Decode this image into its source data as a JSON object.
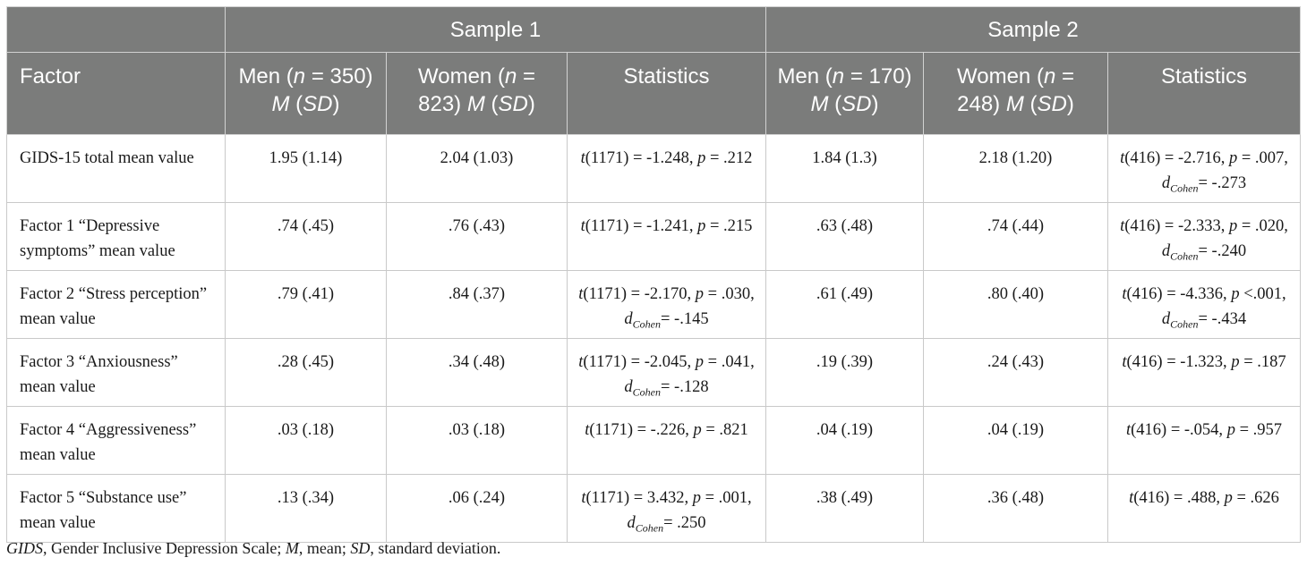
{
  "table": {
    "group_headers": [
      "",
      "Sample 1",
      "Sample 2"
    ],
    "header": {
      "factor": "Factor",
      "men1_a": "Men (",
      "men1_b": "n",
      "men1_c": " = 350) ",
      "women1_a": "Women (",
      "women1_b": "n",
      "women1_c": " = 823) ",
      "men2_a": "Men (",
      "men2_b": "n",
      "men2_c": " = 170) ",
      "women2_a": "Women (",
      "women2_b": "n",
      "women2_c": " = 248) ",
      "M": "M",
      "SD": "SD",
      "lp": " (",
      "rp": ")",
      "statistics": "Statistics"
    },
    "rows": [
      {
        "factor": "GIDS-15 total mean value",
        "men1": "1.95 (1.14)",
        "women1": "2.04 (1.03)",
        "stat1_a": "(1171) = -1.248, ",
        "stat1_b": " = .212",
        "men2": "1.84 (1.3)",
        "women2": "2.18 (1.20)",
        "stat2_a": "(416) = -2.716, ",
        "stat2_b": " = .007, ",
        "stat2_d": "= -.273"
      },
      {
        "factor": "Factor 1 “Depressive symptoms” mean value",
        "men1": ".74 (.45)",
        "women1": ".76 (.43)",
        "stat1_a": "(1171) = -1.241, ",
        "stat1_b": " = .215",
        "men2": ".63 (.48)",
        "women2": ".74 (.44)",
        "stat2_a": "(416) = -2.333, ",
        "stat2_b": " = .020, ",
        "stat2_d": "= -.240"
      },
      {
        "factor": "Factor 2 “Stress perception” mean value",
        "men1": ".79 (.41)",
        "women1": ".84 (.37)",
        "stat1_a": "(1171) = -2.170, ",
        "stat1_b": " = .030, ",
        "stat1_d": "= -.145",
        "men2": ".61 (.49)",
        "women2": ".80 (.40)",
        "stat2_a": "(416) = -4.336, ",
        "stat2_b": " <.001, ",
        "stat2_d": "= -.434"
      },
      {
        "factor": "Factor 3 “Anxiousness” mean value",
        "men1": ".28 (.45)",
        "women1": ".34 (.48)",
        "stat1_a": "(1171) = -2.045, ",
        "stat1_b": " = .041, ",
        "stat1_d": "= -.128",
        "men2": ".19 (.39)",
        "women2": ".24 (.43)",
        "stat2_a": "(416) = -1.323, ",
        "stat2_b": " = .187"
      },
      {
        "factor": "Factor 4 “Aggressiveness” mean value",
        "men1": ".03 (.18)",
        "women1": ".03 (.18)",
        "stat1_a": "(1171) = -.226, ",
        "stat1_b": " = .821",
        "men2": ".04 (.19)",
        "women2": ".04 (.19)",
        "stat2_a": "(416) = -.054, ",
        "stat2_b": " = .957"
      },
      {
        "factor": "Factor 5 “Substance use” mean value",
        "men1": ".13 (.34)",
        "women1": ".06 (.24)",
        "stat1_a": "(1171) = 3.432, ",
        "stat1_b": " = .001, ",
        "stat1_d": "= .250",
        "men2": ".38 (.49)",
        "women2": ".36 (.48)",
        "stat2_a": "(416) = .488, ",
        "stat2_b": " = .626"
      }
    ],
    "sym": {
      "t": "t",
      "p": "p",
      "d": "d",
      "cohen": "Cohen"
    }
  },
  "footnote": {
    "gids": "GIDS",
    "gids_def": ", Gender Inclusive Depression Scale; ",
    "m": "M",
    "m_def": ", mean; ",
    "sd": "SD",
    "sd_def": ", standard deviation."
  },
  "colors": {
    "header_bg": "#7b7c7b",
    "header_text": "#ffffff",
    "border": "#c9c9c9"
  }
}
